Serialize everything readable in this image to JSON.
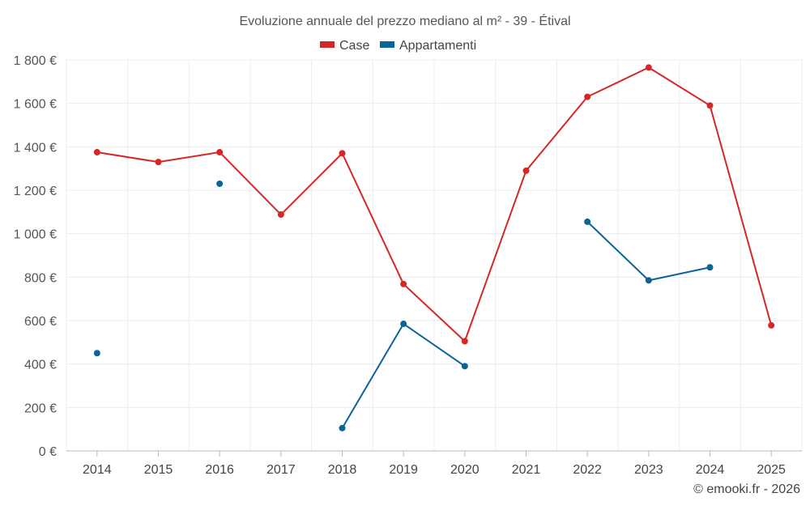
{
  "chart_data": {
    "type": "line",
    "title": "Evoluzione annuale del prezzo mediano al m² - 39 - Étival",
    "categories": [
      "2014",
      "2015",
      "2016",
      "2017",
      "2018",
      "2019",
      "2020",
      "2021",
      "2022",
      "2023",
      "2024",
      "2025"
    ],
    "series": [
      {
        "name": "Case",
        "color": "#d62728",
        "values": [
          1375,
          1330,
          1375,
          1088,
          1370,
          768,
          505,
          1290,
          1630,
          1765,
          1590,
          578
        ]
      },
      {
        "name": "Appartamenti",
        "color": "#0a6399",
        "values": [
          450,
          null,
          1230,
          null,
          105,
          585,
          390,
          null,
          1055,
          785,
          845,
          null
        ]
      }
    ],
    "ylim": [
      0,
      1800
    ],
    "yticks": [
      0,
      200,
      400,
      600,
      800,
      1000,
      1200,
      1400,
      1600,
      1800
    ],
    "ytick_labels": [
      "0 €",
      "200 €",
      "400 €",
      "600 €",
      "800 €",
      "1 000 €",
      "1 200 €",
      "1 400 €",
      "1 600 €",
      "1 800 €"
    ],
    "xlabel": "",
    "ylabel": "",
    "grid": true,
    "legend_position": "top-center"
  },
  "credit": "© emooki.fr - 2026"
}
